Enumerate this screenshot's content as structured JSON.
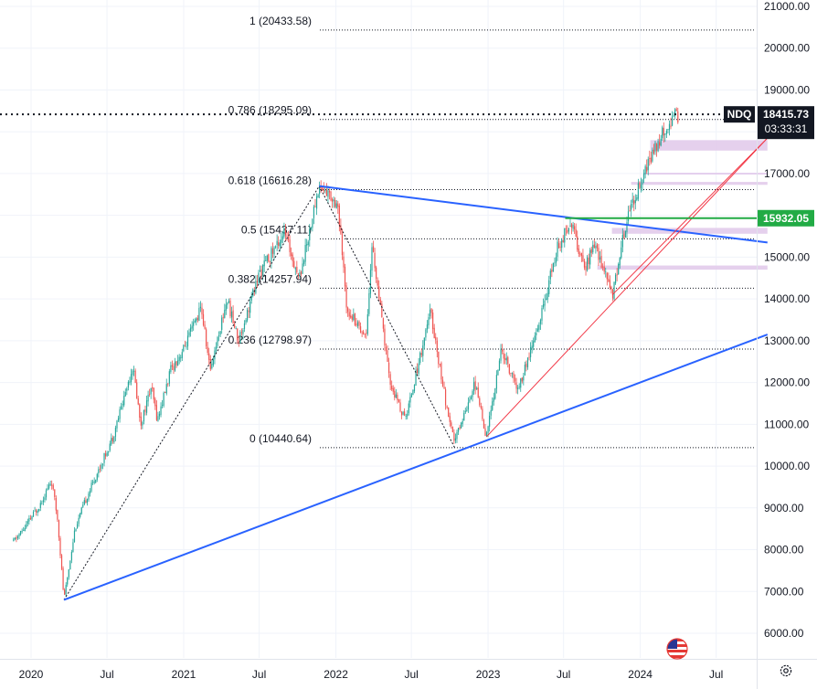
{
  "chart_data": {
    "type": "candlestick",
    "symbol": "NDQ",
    "last_price": "18415.73",
    "countdown": "03:33:31",
    "level_label": "15932.05",
    "y_ticks": [
      "21000.00",
      "20000.00",
      "19000.00",
      "18000.00",
      "17000.00",
      "16000.00",
      "15000.00",
      "14000.00",
      "13000.00",
      "12000.00",
      "11000.00",
      "10000.00",
      "9000.00",
      "8000.00",
      "7000.00",
      "6000.00"
    ],
    "x_ticks": [
      "2020",
      "Jul",
      "2021",
      "Jul",
      "2022",
      "Jul",
      "2023",
      "Jul",
      "2024",
      "Jul"
    ],
    "ylim": [
      5650,
      21150
    ],
    "fib_levels": [
      {
        "ratio": "1",
        "value": 20433.58,
        "label": "1 (20433.58)"
      },
      {
        "ratio": "0.786",
        "value": 18295.09,
        "label": "0.786 (18295.09)"
      },
      {
        "ratio": "0.618",
        "value": 16616.28,
        "label": "0.618 (16616.28)"
      },
      {
        "ratio": "0.5",
        "value": 15437.11,
        "label": "0.5 (15437.11)"
      },
      {
        "ratio": "0.382",
        "value": 14257.94,
        "label": "0.382 (14257.94)"
      },
      {
        "ratio": "0.236",
        "value": 12798.97,
        "label": "0.236 (12798.97)"
      },
      {
        "ratio": "0",
        "value": 10440.64,
        "label": "0 (10440.64)"
      }
    ],
    "price_path": [
      [
        "2019-11-20",
        8200
      ],
      [
        "2019-12-15",
        8500
      ],
      [
        "2020-01-20",
        9050
      ],
      [
        "2020-02-19",
        9650
      ],
      [
        "2020-03-05",
        8700
      ],
      [
        "2020-03-20",
        6800
      ],
      [
        "2020-04-15",
        8500
      ],
      [
        "2020-05-15",
        9300
      ],
      [
        "2020-06-15",
        10000
      ],
      [
        "2020-07-15",
        10700
      ],
      [
        "2020-09-01",
        12400
      ],
      [
        "2020-09-20",
        11000
      ],
      [
        "2020-10-15",
        11900
      ],
      [
        "2020-10-30",
        11100
      ],
      [
        "2020-12-01",
        12300
      ],
      [
        "2021-01-01",
        12800
      ],
      [
        "2021-02-12",
        13800
      ],
      [
        "2021-03-05",
        12300
      ],
      [
        "2021-04-15",
        14000
      ],
      [
        "2021-05-12",
        13000
      ],
      [
        "2021-07-01",
        14600
      ],
      [
        "2021-08-30",
        15600
      ],
      [
        "2021-10-05",
        14500
      ],
      [
        "2021-11-22",
        16700
      ],
      [
        "2022-01-05",
        16300
      ],
      [
        "2022-01-27",
        13800
      ],
      [
        "2022-03-14",
        13100
      ],
      [
        "2022-03-29",
        15300
      ],
      [
        "2022-05-10",
        12000
      ],
      [
        "2022-06-16",
        11100
      ],
      [
        "2022-08-16",
        13700
      ],
      [
        "2022-09-30",
        11000
      ],
      [
        "2022-10-13",
        10600
      ],
      [
        "2022-11-30",
        12000
      ],
      [
        "2022-12-28",
        10700
      ],
      [
        "2023-02-02",
        12800
      ],
      [
        "2023-03-13",
        11800
      ],
      [
        "2023-05-01",
        13300
      ],
      [
        "2023-06-15",
        15200
      ],
      [
        "2023-07-19",
        15900
      ],
      [
        "2023-08-18",
        14700
      ],
      [
        "2023-09-15",
        15300
      ],
      [
        "2023-10-26",
        14100
      ],
      [
        "2023-12-01",
        16000
      ],
      [
        "2024-01-01",
        16800
      ],
      [
        "2024-02-15",
        17800
      ],
      [
        "2024-03-21",
        18400
      ],
      [
        "2024-04-01",
        18300
      ]
    ],
    "trendlines": [
      {
        "color": "#2962ff",
        "from": [
          "2020-03-20",
          6800
        ],
        "to": [
          "2024-11-01",
          13150
        ]
      },
      {
        "color": "#2962ff",
        "from": [
          "2021-11-22",
          16700
        ],
        "to": [
          "2024-11-01",
          15350
        ]
      },
      {
        "color": "#f23645",
        "from": [
          "2022-12-28",
          10700
        ],
        "to": [
          "2024-11-01",
          17850
        ]
      },
      {
        "color": "#f23645",
        "from": [
          "2023-10-26",
          14100
        ],
        "to": [
          "2024-11-01",
          17850
        ]
      }
    ],
    "dotted_path": [
      [
        "2020-03-20",
        6800
      ],
      [
        "2021-11-22",
        16700
      ],
      [
        "2022-10-13",
        10440
      ]
    ],
    "zones": [
      {
        "from": [
          "2024-01-25",
          17800
        ],
        "to": [
          "2024-11-01",
          17550
        ]
      },
      {
        "from": [
          "2024-01-10",
          17020
        ],
        "to": [
          "2024-11-01",
          17000
        ]
      },
      {
        "from": [
          "2023-12-10",
          16800
        ],
        "to": [
          "2024-11-01",
          16730
        ]
      },
      {
        "from": [
          "2023-10-25",
          15700
        ],
        "to": [
          "2024-11-01",
          15560
        ]
      },
      {
        "from": [
          "2023-09-20",
          14800
        ],
        "to": [
          "2024-11-01",
          14700
        ]
      }
    ],
    "colors": {
      "up": "#26a69a",
      "down": "#ef5350",
      "trend_blue": "#2962ff",
      "trend_red": "#f23645",
      "level_green": "#22ab45",
      "zone": "#e1c8ea",
      "tag_dark": "#131722"
    },
    "grid": true
  }
}
